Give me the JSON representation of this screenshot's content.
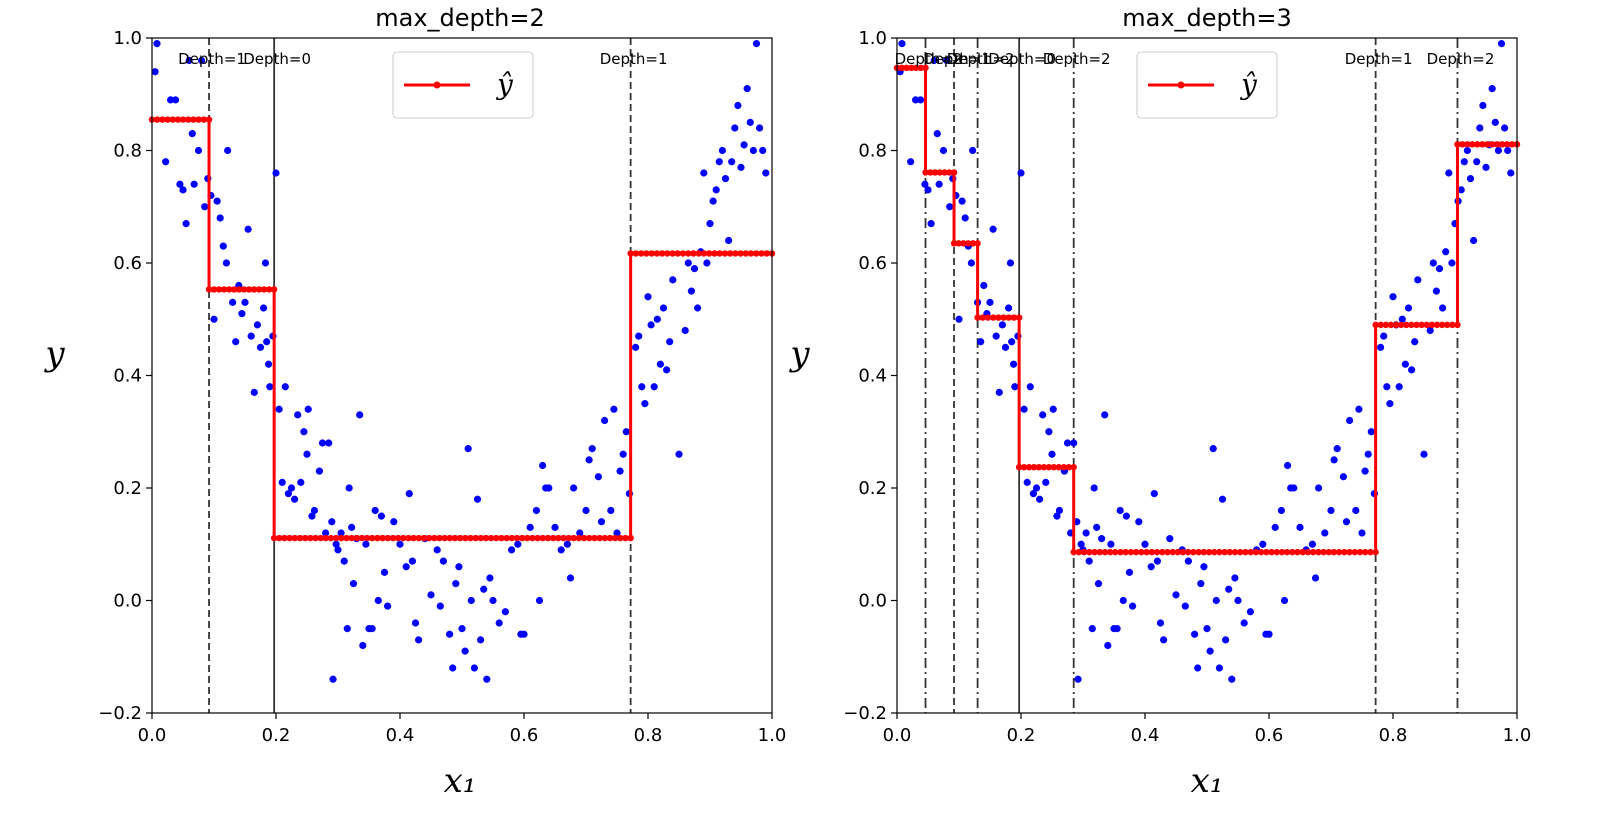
{
  "chart_data": [
    {
      "type": "scatter",
      "title": "max_depth=2",
      "xlabel": "x₁",
      "ylabel": "y",
      "xlim": [
        0.0,
        1.0
      ],
      "ylim": [
        -0.2,
        1.0
      ],
      "xticks": [
        "0.0",
        "0.2",
        "0.4",
        "0.6",
        "0.8",
        "1.0"
      ],
      "yticks": [
        "−0.2",
        "0.0",
        "0.2",
        "0.4",
        "0.6",
        "0.8",
        "1.0"
      ],
      "legend": {
        "label": "ŷ",
        "position": "top-center"
      },
      "splits": [
        {
          "x": 0.197,
          "style": "solid",
          "label": "Depth=0"
        },
        {
          "x": 0.092,
          "style": "dashed",
          "label": "Depth=1"
        },
        {
          "x": 0.772,
          "style": "dashed",
          "label": "Depth=1"
        }
      ],
      "prediction": [
        {
          "x0": 0.0,
          "x1": 0.092,
          "y": 0.855
        },
        {
          "x0": 0.092,
          "x1": 0.197,
          "y": 0.553
        },
        {
          "x0": 0.197,
          "x1": 0.772,
          "y": 0.111
        },
        {
          "x0": 0.772,
          "x1": 1.0,
          "y": 0.617
        }
      ]
    },
    {
      "type": "scatter",
      "title": "max_depth=3",
      "xlabel": "x₁",
      "ylabel": "y",
      "xlim": [
        0.0,
        1.0
      ],
      "ylim": [
        -0.2,
        1.0
      ],
      "xticks": [
        "0.0",
        "0.2",
        "0.4",
        "0.6",
        "0.8",
        "1.0"
      ],
      "yticks": [
        "−0.2",
        "0.0",
        "0.2",
        "0.4",
        "0.6",
        "0.8",
        "1.0"
      ],
      "legend": {
        "label": "ŷ",
        "position": "top-center"
      },
      "splits": [
        {
          "x": 0.197,
          "style": "solid",
          "label": "Depth=0"
        },
        {
          "x": 0.092,
          "style": "dashed",
          "label": "Depth=1"
        },
        {
          "x": 0.772,
          "style": "dashed",
          "label": "Depth=1"
        },
        {
          "x": 0.046,
          "style": "dashdot",
          "label": "Depth=2"
        },
        {
          "x": 0.13,
          "style": "dashdot",
          "label": "Depth=2"
        },
        {
          "x": 0.285,
          "style": "dashdot",
          "label": "Depth=2"
        },
        {
          "x": 0.904,
          "style": "dashdot",
          "label": "Depth=2"
        }
      ],
      "prediction": [
        {
          "x0": 0.0,
          "x1": 0.046,
          "y": 0.947
        },
        {
          "x0": 0.046,
          "x1": 0.092,
          "y": 0.761
        },
        {
          "x0": 0.092,
          "x1": 0.13,
          "y": 0.635
        },
        {
          "x0": 0.13,
          "x1": 0.197,
          "y": 0.503
        },
        {
          "x0": 0.197,
          "x1": 0.285,
          "y": 0.237
        },
        {
          "x0": 0.285,
          "x1": 0.772,
          "y": 0.086
        },
        {
          "x0": 0.772,
          "x1": 0.904,
          "y": 0.49
        },
        {
          "x0": 0.904,
          "x1": 1.0,
          "y": 0.811
        }
      ]
    }
  ],
  "samples": [
    [
      0.005,
      0.94
    ],
    [
      0.008,
      0.99
    ],
    [
      0.022,
      0.78
    ],
    [
      0.03,
      0.89
    ],
    [
      0.038,
      0.89
    ],
    [
      0.045,
      0.74
    ],
    [
      0.05,
      0.73
    ],
    [
      0.055,
      0.67
    ],
    [
      0.06,
      0.96
    ],
    [
      0.065,
      0.83
    ],
    [
      0.068,
      0.74
    ],
    [
      0.075,
      0.8
    ],
    [
      0.08,
      0.96
    ],
    [
      0.085,
      0.7
    ],
    [
      0.09,
      0.75
    ],
    [
      0.095,
      0.72
    ],
    [
      0.1,
      0.5
    ],
    [
      0.105,
      0.71
    ],
    [
      0.11,
      0.68
    ],
    [
      0.115,
      0.63
    ],
    [
      0.12,
      0.6
    ],
    [
      0.122,
      0.8
    ],
    [
      0.13,
      0.53
    ],
    [
      0.135,
      0.46
    ],
    [
      0.14,
      0.56
    ],
    [
      0.145,
      0.51
    ],
    [
      0.15,
      0.53
    ],
    [
      0.155,
      0.66
    ],
    [
      0.16,
      0.47
    ],
    [
      0.165,
      0.37
    ],
    [
      0.17,
      0.49
    ],
    [
      0.175,
      0.45
    ],
    [
      0.18,
      0.52
    ],
    [
      0.183,
      0.6
    ],
    [
      0.185,
      0.46
    ],
    [
      0.188,
      0.42
    ],
    [
      0.19,
      0.38
    ],
    [
      0.195,
      0.47
    ],
    [
      0.2,
      0.76
    ],
    [
      0.205,
      0.34
    ],
    [
      0.21,
      0.21
    ],
    [
      0.215,
      0.38
    ],
    [
      0.22,
      0.19
    ],
    [
      0.225,
      0.2
    ],
    [
      0.23,
      0.18
    ],
    [
      0.235,
      0.33
    ],
    [
      0.24,
      0.21
    ],
    [
      0.245,
      0.3
    ],
    [
      0.25,
      0.26
    ],
    [
      0.252,
      0.34
    ],
    [
      0.258,
      0.15
    ],
    [
      0.262,
      0.16
    ],
    [
      0.27,
      0.23
    ],
    [
      0.275,
      0.28
    ],
    [
      0.28,
      0.12
    ],
    [
      0.285,
      0.28
    ],
    [
      0.29,
      0.14
    ],
    [
      0.292,
      -0.14
    ],
    [
      0.297,
      0.1
    ],
    [
      0.3,
      0.09
    ],
    [
      0.305,
      0.12
    ],
    [
      0.31,
      0.07
    ],
    [
      0.315,
      -0.05
    ],
    [
      0.318,
      0.2
    ],
    [
      0.322,
      0.13
    ],
    [
      0.325,
      0.03
    ],
    [
      0.33,
      0.11
    ],
    [
      0.335,
      0.33
    ],
    [
      0.34,
      -0.08
    ],
    [
      0.345,
      0.1
    ],
    [
      0.35,
      -0.05
    ],
    [
      0.355,
      -0.05
    ],
    [
      0.36,
      0.16
    ],
    [
      0.365,
      0.0
    ],
    [
      0.37,
      0.15
    ],
    [
      0.375,
      0.05
    ],
    [
      0.38,
      -0.01
    ],
    [
      0.39,
      0.14
    ],
    [
      0.4,
      0.1
    ],
    [
      0.41,
      0.06
    ],
    [
      0.415,
      0.19
    ],
    [
      0.42,
      0.07
    ],
    [
      0.425,
      -0.04
    ],
    [
      0.43,
      -0.07
    ],
    [
      0.44,
      0.11
    ],
    [
      0.45,
      0.01
    ],
    [
      0.46,
      0.09
    ],
    [
      0.465,
      -0.01
    ],
    [
      0.47,
      0.07
    ],
    [
      0.48,
      -0.06
    ],
    [
      0.485,
      -0.12
    ],
    [
      0.49,
      0.03
    ],
    [
      0.495,
      0.06
    ],
    [
      0.5,
      -0.05
    ],
    [
      0.505,
      -0.09
    ],
    [
      0.51,
      0.27
    ],
    [
      0.515,
      0.0
    ],
    [
      0.52,
      -0.12
    ],
    [
      0.525,
      0.18
    ],
    [
      0.53,
      -0.07
    ],
    [
      0.535,
      0.02
    ],
    [
      0.54,
      -0.14
    ],
    [
      0.545,
      0.04
    ],
    [
      0.55,
      0.0
    ],
    [
      0.56,
      -0.04
    ],
    [
      0.57,
      -0.02
    ],
    [
      0.58,
      0.09
    ],
    [
      0.59,
      0.1
    ],
    [
      0.595,
      -0.06
    ],
    [
      0.6,
      -0.06
    ],
    [
      0.61,
      0.13
    ],
    [
      0.62,
      0.16
    ],
    [
      0.625,
      0.0
    ],
    [
      0.63,
      0.24
    ],
    [
      0.635,
      0.2
    ],
    [
      0.64,
      0.2
    ],
    [
      0.65,
      0.13
    ],
    [
      0.66,
      0.09
    ],
    [
      0.67,
      0.1
    ],
    [
      0.675,
      0.04
    ],
    [
      0.68,
      0.2
    ],
    [
      0.69,
      0.12
    ],
    [
      0.7,
      0.16
    ],
    [
      0.705,
      0.25
    ],
    [
      0.71,
      0.27
    ],
    [
      0.72,
      0.22
    ],
    [
      0.725,
      0.14
    ],
    [
      0.73,
      0.32
    ],
    [
      0.74,
      0.16
    ],
    [
      0.745,
      0.34
    ],
    [
      0.75,
      0.12
    ],
    [
      0.755,
      0.23
    ],
    [
      0.76,
      0.26
    ],
    [
      0.765,
      0.3
    ],
    [
      0.77,
      0.19
    ],
    [
      0.78,
      0.45
    ],
    [
      0.785,
      0.47
    ],
    [
      0.79,
      0.38
    ],
    [
      0.795,
      0.35
    ],
    [
      0.8,
      0.54
    ],
    [
      0.805,
      0.49
    ],
    [
      0.81,
      0.38
    ],
    [
      0.815,
      0.5
    ],
    [
      0.82,
      0.42
    ],
    [
      0.825,
      0.52
    ],
    [
      0.83,
      0.41
    ],
    [
      0.835,
      0.46
    ],
    [
      0.84,
      0.57
    ],
    [
      0.85,
      0.26
    ],
    [
      0.86,
      0.48
    ],
    [
      0.865,
      0.6
    ],
    [
      0.87,
      0.55
    ],
    [
      0.875,
      0.59
    ],
    [
      0.88,
      0.52
    ],
    [
      0.885,
      0.62
    ],
    [
      0.89,
      0.76
    ],
    [
      0.895,
      0.6
    ],
    [
      0.9,
      0.67
    ],
    [
      0.905,
      0.71
    ],
    [
      0.91,
      0.73
    ],
    [
      0.915,
      0.78
    ],
    [
      0.92,
      0.8
    ],
    [
      0.925,
      0.75
    ],
    [
      0.93,
      0.64
    ],
    [
      0.935,
      0.78
    ],
    [
      0.94,
      0.84
    ],
    [
      0.945,
      0.88
    ],
    [
      0.95,
      0.77
    ],
    [
      0.955,
      0.81
    ],
    [
      0.96,
      0.91
    ],
    [
      0.965,
      0.85
    ],
    [
      0.97,
      0.8
    ],
    [
      0.975,
      0.99
    ],
    [
      0.98,
      0.84
    ],
    [
      0.985,
      0.8
    ],
    [
      0.99,
      0.76
    ]
  ],
  "colors": {
    "samples": "#0000ff",
    "prediction": "#ff0000",
    "splits": "#333333",
    "axes": "#000000",
    "legend_border": "#cccccc"
  }
}
